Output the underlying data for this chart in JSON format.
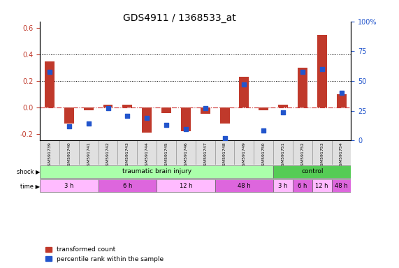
{
  "title": "GDS4911 / 1368533_at",
  "samples": [
    "GSM591739",
    "GSM591740",
    "GSM591741",
    "GSM591742",
    "GSM591743",
    "GSM591744",
    "GSM591745",
    "GSM591746",
    "GSM591747",
    "GSM591748",
    "GSM591749",
    "GSM591750",
    "GSM591751",
    "GSM591752",
    "GSM591753",
    "GSM591754"
  ],
  "bar_values": [
    0.35,
    -0.12,
    -0.02,
    0.02,
    0.02,
    -0.19,
    -0.04,
    -0.18,
    -0.05,
    -0.12,
    0.23,
    -0.02,
    0.02,
    0.3,
    0.55,
    0.1
  ],
  "dot_values": [
    0.575,
    0.12,
    0.14,
    0.27,
    0.205,
    0.19,
    0.13,
    0.095,
    0.27,
    0.02,
    0.47,
    0.085,
    0.235,
    0.575,
    0.6,
    0.4
  ],
  "bar_color": "#c0392b",
  "dot_color": "#2255cc",
  "ylim_left": [
    -0.25,
    0.65
  ],
  "ylim_right": [
    0,
    100
  ],
  "left_yticks": [
    -0.2,
    0.0,
    0.2,
    0.4,
    0.6
  ],
  "right_yticks": [
    0,
    25,
    50,
    75,
    100
  ],
  "right_yticklabels": [
    "0",
    "25",
    "50",
    "75",
    "100%"
  ],
  "dotted_hlines": [
    0.2,
    0.4
  ],
  "zero_line_color": "#cc3333",
  "shock_row": [
    {
      "label": "traumatic brain injury",
      "start": 0,
      "end": 12,
      "color": "#aaffaa"
    },
    {
      "label": "control",
      "start": 12,
      "end": 16,
      "color": "#55cc55"
    }
  ],
  "time_row": [
    {
      "label": "3 h",
      "start": 0,
      "end": 4,
      "color": "#ffaaff"
    },
    {
      "label": "6 h",
      "start": 4,
      "end": 8,
      "color": "#dd66dd"
    },
    {
      "label": "12 h",
      "start": 8,
      "end": 12,
      "color": "#ffaaff"
    },
    {
      "label": "48 h",
      "start": 12,
      "end": 16,
      "color": "#dd66dd"
    },
    {
      "label": "3 h",
      "start": 12,
      "end": 13,
      "color": "#ffaaff"
    },
    {
      "label": "6 h",
      "start": 13,
      "end": 14,
      "color": "#dd66dd"
    },
    {
      "label": "12 h",
      "start": 14,
      "end": 15,
      "color": "#ffaaff"
    },
    {
      "label": "48 h",
      "start": 15,
      "end": 16,
      "color": "#dd66dd"
    }
  ],
  "legend_items": [
    {
      "label": "transformed count",
      "color": "#c0392b",
      "marker": "s"
    },
    {
      "label": "percentile rank within the sample",
      "color": "#2255cc",
      "marker": "s"
    }
  ],
  "background_color": "#ffffff",
  "grid_color": "#cccccc"
}
